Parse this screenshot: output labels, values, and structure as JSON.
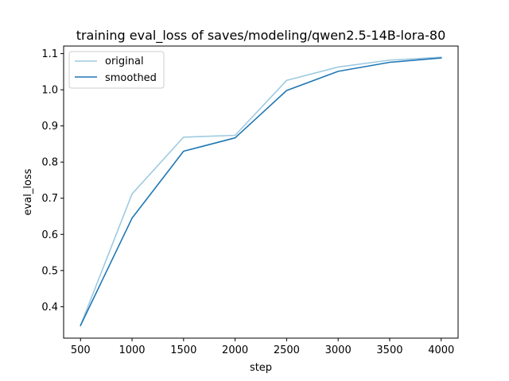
{
  "chart_data": {
    "type": "line",
    "title": "training eval_loss of saves/modeling/qwen2.5-14B-lora-80",
    "xlabel": "step",
    "ylabel": "eval_loss",
    "x": [
      500,
      1000,
      1500,
      2000,
      2500,
      3000,
      3500,
      4000
    ],
    "xlim": [
      336,
      4164
    ],
    "ylim": [
      0.313,
      1.121
    ],
    "xticks": [
      500,
      1000,
      1500,
      2000,
      2500,
      3000,
      3500,
      4000
    ],
    "yticks": [
      0.4,
      0.5,
      0.6,
      0.7,
      0.8,
      0.9,
      1.0,
      1.1
    ],
    "xtick_labels": [
      "500",
      "1000",
      "1500",
      "2000",
      "2500",
      "3000",
      "3500",
      "4000"
    ],
    "ytick_labels": [
      "0.4",
      "0.5",
      "0.6",
      "0.7",
      "0.8",
      "0.9",
      "1.0",
      "1.1"
    ],
    "grid": false,
    "legend_position": "top-left",
    "series": [
      {
        "name": "original",
        "color": "#9ecae1",
        "values": [
          0.348,
          0.712,
          0.869,
          0.874,
          1.026,
          1.063,
          1.082,
          1.09
        ]
      },
      {
        "name": "smoothed",
        "color": "#1f77b4",
        "values": [
          0.348,
          0.645,
          0.83,
          0.867,
          0.998,
          1.051,
          1.076,
          1.088
        ]
      }
    ]
  }
}
